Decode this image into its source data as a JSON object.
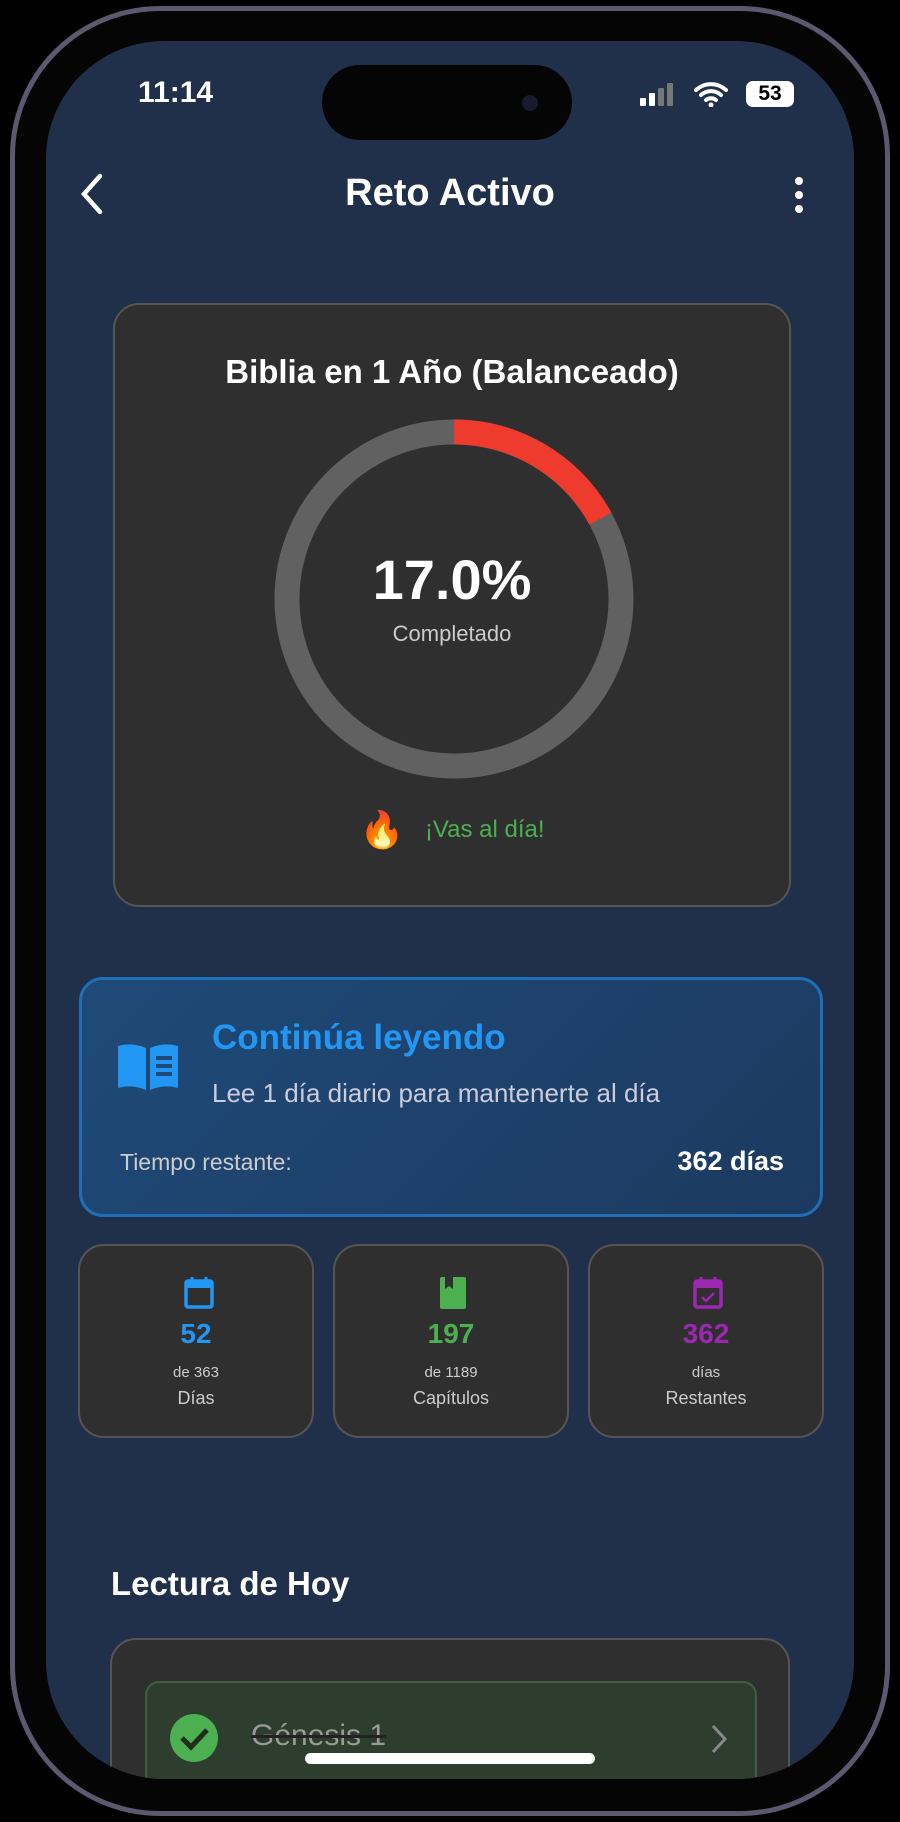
{
  "status_bar": {
    "time": "11:14",
    "battery": "53"
  },
  "header": {
    "title": "Reto Activo",
    "back_icon": "chevron-left-icon",
    "menu_icon": "more-vertical-icon"
  },
  "progress_card": {
    "title": "Biblia en 1 Año (Balanceado)",
    "percent_label": "17.0%",
    "progress_percent": 17.0,
    "caption": "Completado",
    "status_emoji": "🔥",
    "status_text": "¡Vas al día!",
    "colors": {
      "progress": "#ef3b2d",
      "track": "#616161",
      "status": "#4caf50"
    }
  },
  "continue_card": {
    "title": "Continúa leyendo",
    "subtitle": "Lee 1 día diario para mantenerte al día",
    "remaining_label": "Tiempo restante:",
    "remaining_value": "362 días",
    "accent": "#2196f3"
  },
  "stats": [
    {
      "icon": "calendar-icon",
      "value": "52",
      "line1": "de 363",
      "line2": "Días",
      "color": "#2196f3"
    },
    {
      "icon": "book-icon",
      "value": "197",
      "line1": "de 1189",
      "line2": "Capítulos",
      "color": "#4caf50"
    },
    {
      "icon": "calendar-check-icon",
      "value": "362",
      "line1": "días",
      "line2": "Restantes",
      "color": "#9c27b0"
    }
  ],
  "today": {
    "heading": "Lectura de Hoy",
    "items": [
      {
        "label": "Génesis 1",
        "completed": true
      }
    ]
  }
}
